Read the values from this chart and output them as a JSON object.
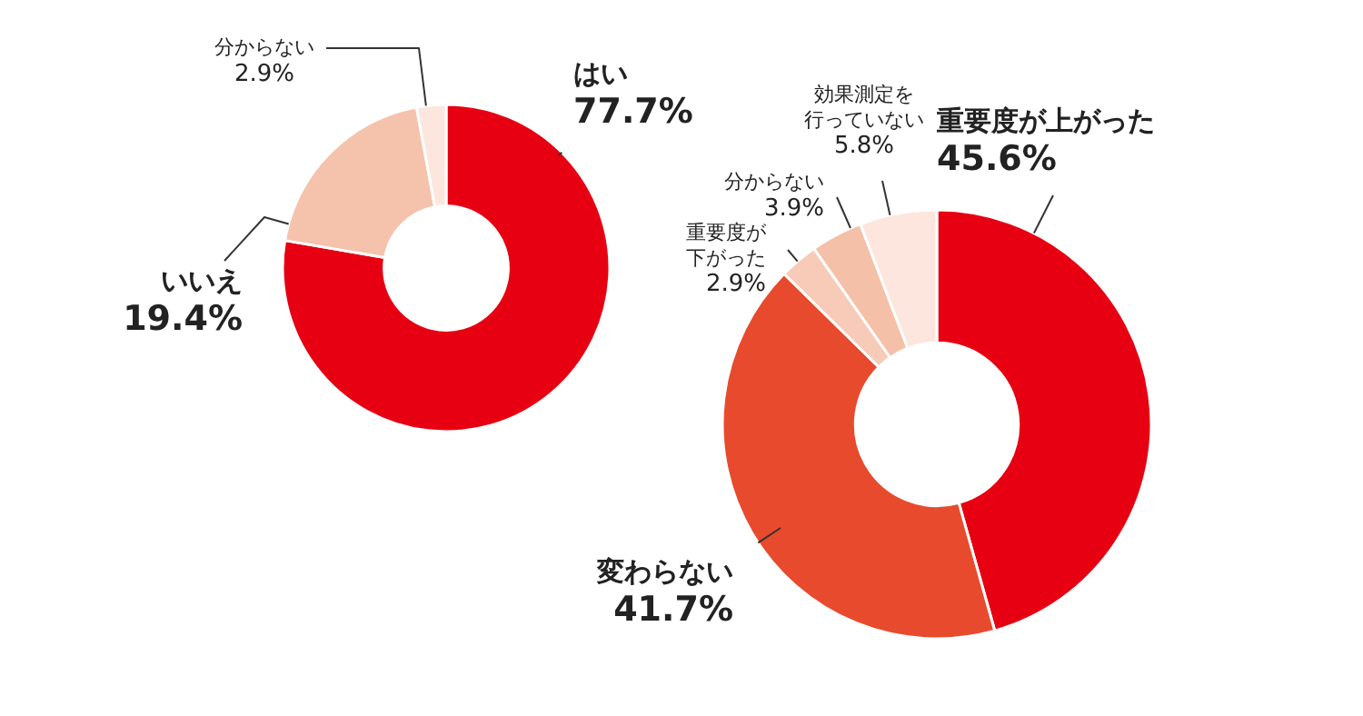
{
  "chart_data": [
    {
      "type": "donut",
      "categories": [
        "はい",
        "いいえ",
        "分からない"
      ],
      "values": [
        77.7,
        19.4,
        2.9
      ],
      "value_labels": [
        "77.7%",
        "19.4%",
        "2.9%"
      ],
      "colors": [
        "#e60012",
        "#f5c2ac",
        "#fce6dd"
      ]
    },
    {
      "type": "donut",
      "categories": [
        "重要度が上がった",
        "変わらない",
        "重要度が下がった",
        "分からない",
        "効果測定を行っていない"
      ],
      "values": [
        45.6,
        41.7,
        2.9,
        3.9,
        5.8
      ],
      "value_labels": [
        "45.6%",
        "41.7%",
        "2.9%",
        "3.9%",
        "5.8%"
      ],
      "colors": [
        "#e60012",
        "#e84a2d",
        "#f7cbb8",
        "#f5c0a8",
        "#fce6dd"
      ]
    }
  ]
}
